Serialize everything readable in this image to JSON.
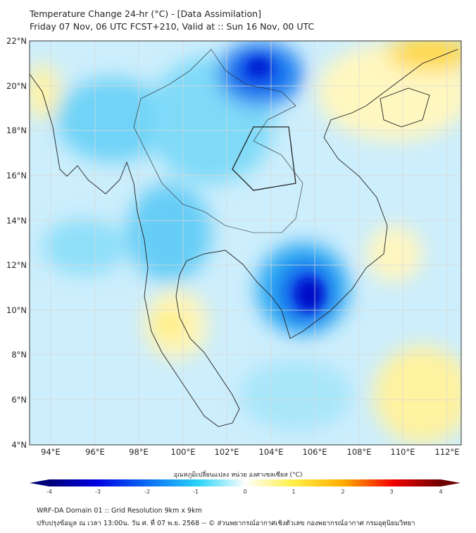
{
  "header": {
    "title": "Temperature Change 24-hr (°C) - [Data Assimilation]",
    "subtitle": "Friday 07 Nov, 06 UTC FCST+210, Valid at :: Sun 16 Nov, 00 UTC"
  },
  "axes": {
    "lat_labels": [
      "22°N",
      "20°N",
      "18°N",
      "16°N",
      "14°N",
      "12°N",
      "10°N",
      "8°N",
      "6°N",
      "4°N"
    ],
    "lon_labels": [
      "94°E",
      "96°E",
      "98°E",
      "100°E",
      "102°E",
      "104°E",
      "106°E",
      "108°E",
      "110°E",
      "112°E"
    ]
  },
  "colorbar": {
    "title": "อุณหภูมิเปลี่ยนแปลง หน่วย องศาเซลเซียส (°C)",
    "ticks": [
      "-4",
      "-3",
      "-2",
      "-1",
      "0",
      "1",
      "2",
      "3",
      "4"
    ],
    "range": [
      -4,
      4
    ],
    "colors": [
      "#00007a",
      "#0000e0",
      "#0a6cf5",
      "#29d4f7",
      "#ffffff",
      "#fff04a",
      "#ffae00",
      "#f20000",
      "#6e0000"
    ]
  },
  "footer": {
    "line1": "WRF-DA Domain 01 :: Grid Resolution 9km x 9km",
    "line2": "ปรับปรุงข้อมูล ณ เวลา 13:00น. วัน ศ. ที่ 07 พ.ย. 2568 -- © ส่วนพยากรณ์อากาศเชิงตัวเลข กองพยากรณ์อากาศ กรมอุตุนิยมวิทยา"
  }
}
